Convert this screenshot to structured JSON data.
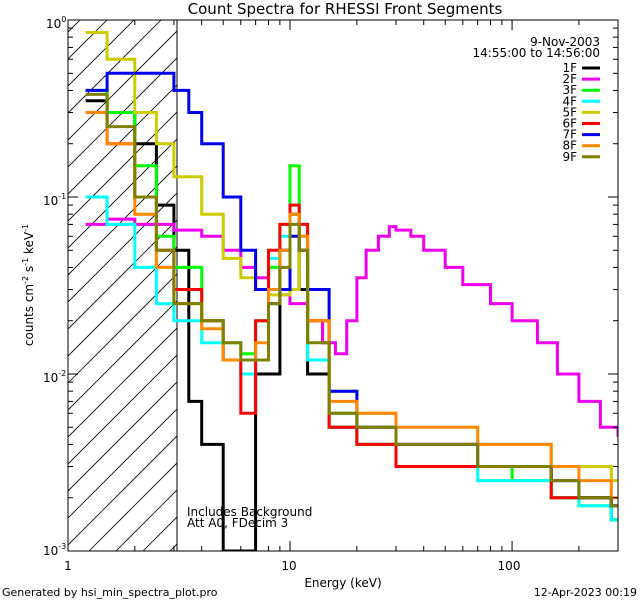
{
  "chart_data": {
    "type": "line",
    "title": "Count Spectra for RHESSI Front Segments",
    "xlabel": "Energy (keV)",
    "ylabel_parts": {
      "a": "counts cm",
      "a_sup": "-2",
      "b": " s",
      "b_sup": "-1",
      "c": " keV",
      "c_sup": "-1"
    },
    "x_scale": "log",
    "y_scale": "log",
    "xlim": [
      1,
      300
    ],
    "ylim": [
      0.001,
      1
    ],
    "x_tick_labels": [
      "1",
      "10",
      "100"
    ],
    "y_tick_labels": {
      "m3": {
        "base": "10",
        "exp": "-3"
      },
      "m2": {
        "base": "10",
        "exp": "-2"
      },
      "m1": {
        "base": "10",
        "exp": "-1"
      },
      "z": {
        "base": "10",
        "exp": "0"
      }
    },
    "annotations": {
      "date": "9-Nov-2003",
      "time_range": "14:55:00 to 14:56:00",
      "background_note": "Includes Background",
      "attenuator_note": "Att A0, FDecim 3",
      "hatched_region_max_energy": 3
    },
    "legend_position": "top-right",
    "series": [
      {
        "name": "1F",
        "color": "#000000",
        "values": [
          [
            1.2,
            0.35
          ],
          [
            1.5,
            0.3
          ],
          [
            2,
            0.2
          ],
          [
            2.5,
            0.09
          ],
          [
            3,
            0.05
          ],
          [
            3.5,
            0.007
          ],
          [
            4,
            0.004
          ],
          [
            5,
            0.001
          ],
          [
            7,
            0.01
          ],
          [
            9,
            0.05
          ],
          [
            10,
            0.08
          ],
          [
            11,
            0.03
          ],
          [
            12,
            0.01
          ],
          [
            15,
            0.005
          ],
          [
            20,
            0.004
          ],
          [
            30,
            0.003
          ],
          [
            50,
            0.003
          ],
          [
            70,
            0.003
          ],
          [
            100,
            0.003
          ],
          [
            150,
            0.002
          ],
          [
            200,
            0.002
          ],
          [
            280,
            0.0015
          ]
        ]
      },
      {
        "name": "2F",
        "color": "#ee00ee",
        "values": [
          [
            1.2,
            0.07
          ],
          [
            1.5,
            0.075
          ],
          [
            2,
            0.07
          ],
          [
            2.5,
            0.07
          ],
          [
            3,
            0.065
          ],
          [
            4,
            0.06
          ],
          [
            5,
            0.05
          ],
          [
            6,
            0.04
          ],
          [
            7,
            0.035
          ],
          [
            8,
            0.03
          ],
          [
            9,
            0.028
          ],
          [
            10,
            0.025
          ],
          [
            12,
            0.02
          ],
          [
            14,
            0.015
          ],
          [
            16,
            0.013
          ],
          [
            18,
            0.02
          ],
          [
            20,
            0.035
          ],
          [
            22,
            0.05
          ],
          [
            25,
            0.06
          ],
          [
            28,
            0.068
          ],
          [
            30,
            0.065
          ],
          [
            35,
            0.06
          ],
          [
            40,
            0.05
          ],
          [
            50,
            0.04
          ],
          [
            60,
            0.032
          ],
          [
            80,
            0.025
          ],
          [
            100,
            0.02
          ],
          [
            130,
            0.015
          ],
          [
            160,
            0.01
          ],
          [
            200,
            0.007
          ],
          [
            250,
            0.005
          ],
          [
            300,
            0.0045
          ]
        ]
      },
      {
        "name": "3F",
        "color": "#00ff00",
        "values": [
          [
            1.2,
            0.4
          ],
          [
            1.5,
            0.3
          ],
          [
            2,
            0.15
          ],
          [
            2.5,
            0.06
          ],
          [
            3,
            0.04
          ],
          [
            4,
            0.02
          ],
          [
            5,
            0.015
          ],
          [
            6,
            0.013
          ],
          [
            7,
            0.02
          ],
          [
            8,
            0.04
          ],
          [
            9,
            0.07
          ],
          [
            10,
            0.15
          ],
          [
            11,
            0.06
          ],
          [
            12,
            0.012
          ],
          [
            15,
            0.006
          ],
          [
            20,
            0.004
          ],
          [
            30,
            0.003
          ],
          [
            50,
            0.003
          ],
          [
            70,
            0.003
          ],
          [
            100,
            0.0025
          ],
          [
            150,
            0.002
          ],
          [
            200,
            0.0018
          ],
          [
            280,
            0.0015
          ]
        ]
      },
      {
        "name": "4F",
        "color": "#00ffff",
        "values": [
          [
            1.2,
            0.1
          ],
          [
            1.5,
            0.07
          ],
          [
            2,
            0.04
          ],
          [
            2.5,
            0.025
          ],
          [
            3,
            0.02
          ],
          [
            4,
            0.015
          ],
          [
            5,
            0.012
          ],
          [
            6,
            0.01
          ],
          [
            7,
            0.02
          ],
          [
            8,
            0.045
          ],
          [
            9,
            0.06
          ],
          [
            10,
            0.09
          ],
          [
            11,
            0.05
          ],
          [
            12,
            0.012
          ],
          [
            15,
            0.005
          ],
          [
            20,
            0.004
          ],
          [
            30,
            0.003
          ],
          [
            50,
            0.003
          ],
          [
            70,
            0.0025
          ],
          [
            100,
            0.0025
          ],
          [
            150,
            0.002
          ],
          [
            200,
            0.0018
          ],
          [
            280,
            0.0015
          ]
        ]
      },
      {
        "name": "5F",
        "color": "#cccc00",
        "values": [
          [
            1.2,
            0.85
          ],
          [
            1.5,
            0.6
          ],
          [
            2,
            0.3
          ],
          [
            2.5,
            0.2
          ],
          [
            3,
            0.13
          ],
          [
            4,
            0.08
          ],
          [
            5,
            0.045
          ],
          [
            6,
            0.035
          ],
          [
            7,
            0.03
          ],
          [
            8,
            0.028
          ],
          [
            9,
            0.028
          ],
          [
            10,
            0.03
          ],
          [
            11,
            0.05
          ],
          [
            12,
            0.02
          ],
          [
            15,
            0.008
          ],
          [
            20,
            0.006
          ],
          [
            30,
            0.004
          ],
          [
            50,
            0.004
          ],
          [
            70,
            0.004
          ],
          [
            100,
            0.004
          ],
          [
            150,
            0.003
          ],
          [
            200,
            0.003
          ],
          [
            280,
            0.0025
          ]
        ]
      },
      {
        "name": "6F",
        "color": "#ff0000",
        "values": [
          [
            1.2,
            0.3
          ],
          [
            1.5,
            0.2
          ],
          [
            2,
            0.1
          ],
          [
            2.5,
            0.05
          ],
          [
            3,
            0.03
          ],
          [
            4,
            0.02
          ],
          [
            5,
            0.012
          ],
          [
            6,
            0.006
          ],
          [
            7,
            0.02
          ],
          [
            8,
            0.05
          ],
          [
            9,
            0.07
          ],
          [
            10,
            0.09
          ],
          [
            11,
            0.07
          ],
          [
            12,
            0.02
          ],
          [
            15,
            0.005
          ],
          [
            20,
            0.004
          ],
          [
            30,
            0.003
          ],
          [
            50,
            0.003
          ],
          [
            70,
            0.003
          ],
          [
            100,
            0.003
          ],
          [
            150,
            0.002
          ],
          [
            200,
            0.002
          ],
          [
            280,
            0.0018
          ]
        ]
      },
      {
        "name": "7F",
        "color": "#0000ee",
        "values": [
          [
            1.2,
            0.4
          ],
          [
            1.5,
            0.5
          ],
          [
            2,
            0.5
          ],
          [
            2.5,
            0.5
          ],
          [
            3,
            0.4
          ],
          [
            3.5,
            0.3
          ],
          [
            4,
            0.2
          ],
          [
            5,
            0.1
          ],
          [
            6,
            0.05
          ],
          [
            7,
            0.03
          ],
          [
            8,
            0.025
          ],
          [
            9,
            0.03
          ],
          [
            10,
            0.06
          ],
          [
            11,
            0.05
          ],
          [
            12,
            0.03
          ],
          [
            15,
            0.008
          ],
          [
            20,
            0.005
          ],
          [
            30,
            0.004
          ],
          [
            50,
            0.004
          ],
          [
            70,
            0.003
          ],
          [
            100,
            0.003
          ],
          [
            150,
            0.0025
          ],
          [
            200,
            0.002
          ],
          [
            280,
            0.0018
          ]
        ]
      },
      {
        "name": "8F",
        "color": "#ff8800",
        "values": [
          [
            1.2,
            0.3
          ],
          [
            1.5,
            0.2
          ],
          [
            2,
            0.08
          ],
          [
            2.5,
            0.04
          ],
          [
            3,
            0.025
          ],
          [
            4,
            0.018
          ],
          [
            5,
            0.012
          ],
          [
            6,
            0.012
          ],
          [
            7,
            0.015
          ],
          [
            8,
            0.03
          ],
          [
            9,
            0.05
          ],
          [
            10,
            0.08
          ],
          [
            11,
            0.06
          ],
          [
            12,
            0.02
          ],
          [
            15,
            0.007
          ],
          [
            20,
            0.006
          ],
          [
            30,
            0.005
          ],
          [
            50,
            0.005
          ],
          [
            70,
            0.004
          ],
          [
            100,
            0.004
          ],
          [
            150,
            0.003
          ],
          [
            200,
            0.0025
          ],
          [
            280,
            0.002
          ]
        ]
      },
      {
        "name": "9F",
        "color": "#808000",
        "values": [
          [
            1.2,
            0.38
          ],
          [
            1.5,
            0.25
          ],
          [
            2,
            0.1
          ],
          [
            2.5,
            0.05
          ],
          [
            3,
            0.025
          ],
          [
            4,
            0.02
          ],
          [
            5,
            0.015
          ],
          [
            6,
            0.012
          ],
          [
            7,
            0.012
          ],
          [
            8,
            0.025
          ],
          [
            9,
            0.04
          ],
          [
            10,
            0.07
          ],
          [
            11,
            0.05
          ],
          [
            12,
            0.015
          ],
          [
            15,
            0.006
          ],
          [
            20,
            0.005
          ],
          [
            30,
            0.004
          ],
          [
            50,
            0.004
          ],
          [
            70,
            0.003
          ],
          [
            100,
            0.003
          ],
          [
            150,
            0.0025
          ],
          [
            200,
            0.002
          ],
          [
            280,
            0.0018
          ]
        ]
      }
    ]
  },
  "footer": {
    "generated_by": "Generated by hsi_min_spectra_plot.pro",
    "timestamp": "12-Apr-2023 00:19"
  }
}
